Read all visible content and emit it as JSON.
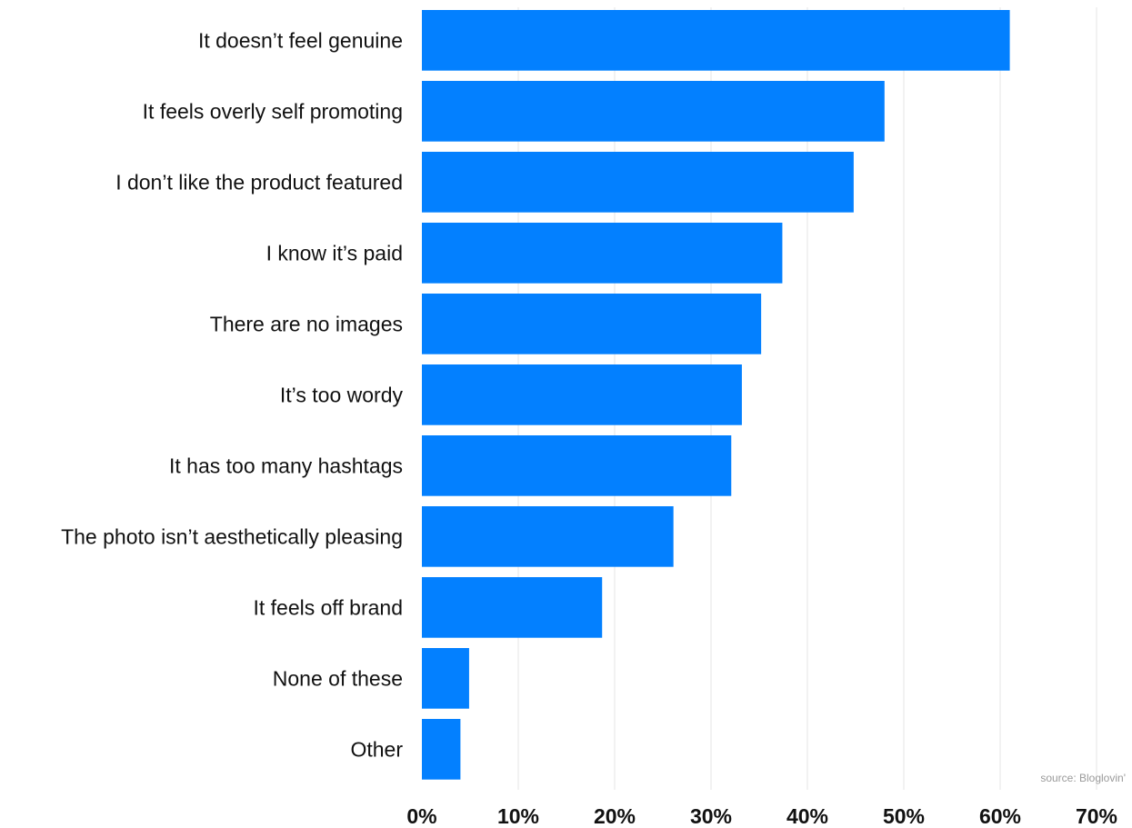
{
  "chart_data": {
    "type": "bar",
    "orientation": "horizontal",
    "categories": [
      "It doesn’t feel genuine",
      "It feels overly self promoting",
      "I don’t like the product featured",
      "I know it’s paid",
      "There are no images",
      "It’s too wordy",
      "It has too many hashtags",
      "The photo isn’t aesthetically pleasing",
      "It feels off brand",
      "None of these",
      "Other"
    ],
    "values": [
      61,
      48,
      44.8,
      37.4,
      35.2,
      33.2,
      32.1,
      26.1,
      18.7,
      4.9,
      4.0
    ],
    "xlim": [
      0,
      70
    ],
    "xticks": [
      0,
      10,
      20,
      30,
      40,
      50,
      60,
      70
    ],
    "xtick_labels": [
      "0%",
      "10%",
      "20%",
      "30%",
      "40%",
      "50%",
      "60%",
      "70%"
    ],
    "grid": "vertical",
    "bar_color": "#0380ff",
    "source": "source: Bloglovin'"
  }
}
